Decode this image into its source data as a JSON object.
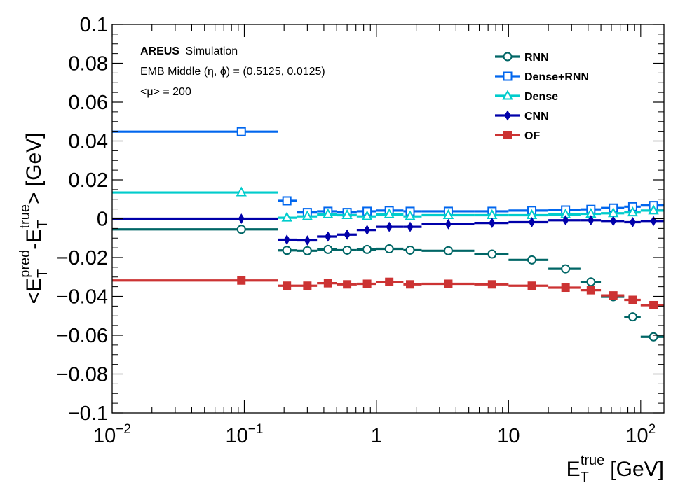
{
  "chart_data": {
    "type": "line",
    "x_scale": "log",
    "xlim": [
      0.01,
      150
    ],
    "ylim": [
      -0.1,
      0.1
    ],
    "xlabel": {
      "main": "E",
      "sub": "T",
      "sup": "true",
      "unit": "[GeV]"
    },
    "ylabel": {
      "pre": "<E",
      "sub1": "T",
      "sup1": "pred",
      "mid": "-E",
      "sub2": "T",
      "sup2": "true",
      "post": "> [GeV]"
    },
    "y_ticks": [
      {
        "value": 0.1,
        "label": "0.1"
      },
      {
        "value": 0.08,
        "label": "0.08"
      },
      {
        "value": 0.06,
        "label": "0.06"
      },
      {
        "value": 0.04,
        "label": "0.04"
      },
      {
        "value": 0.02,
        "label": "0.02"
      },
      {
        "value": 0,
        "label": "0"
      },
      {
        "value": -0.02,
        "label": "−0.02"
      },
      {
        "value": -0.04,
        "label": "−0.04"
      },
      {
        "value": -0.06,
        "label": "−0.06"
      },
      {
        "value": -0.08,
        "label": "−0.08"
      },
      {
        "value": -0.1,
        "label": "−0.1"
      }
    ],
    "x_ticks": [
      {
        "value": 0.01,
        "base": "10",
        "exp": "−2"
      },
      {
        "value": 0.1,
        "base": "10",
        "exp": "−1"
      },
      {
        "value": 1,
        "base": "1",
        "exp": ""
      },
      {
        "value": 10,
        "base": "10",
        "exp": ""
      },
      {
        "value": 100,
        "base": "10",
        "exp": "2"
      }
    ],
    "annotations": {
      "line1_bold": "AREUS",
      "line1_rest": "Simulation",
      "line2": "EMB Middle (η, ϕ) = (0.5125, 0.0125)",
      "line3": "<μ> = 200"
    },
    "legend_position": "top-right",
    "bins": [
      [
        0.01,
        0.18
      ],
      [
        0.18,
        0.25
      ],
      [
        0.25,
        0.355
      ],
      [
        0.355,
        0.5
      ],
      [
        0.5,
        0.71
      ],
      [
        0.71,
        1.0
      ],
      [
        1.0,
        1.6
      ],
      [
        1.6,
        2.2
      ],
      [
        2.2,
        5.5
      ],
      [
        5.5,
        10
      ],
      [
        10,
        20
      ],
      [
        20,
        35
      ],
      [
        35,
        50
      ],
      [
        50,
        75
      ],
      [
        75,
        100
      ],
      [
        100,
        150
      ]
    ],
    "centers": [
      0.095,
      0.21,
      0.3,
      0.43,
      0.6,
      0.85,
      1.25,
      1.8,
      3.5,
      7.5,
      15,
      27,
      42,
      62,
      87,
      125
    ],
    "series": [
      {
        "name": "RNN",
        "color": "#006666",
        "marker": "open-circle",
        "values": [
          -0.0055,
          -0.0163,
          -0.0165,
          -0.0158,
          -0.0162,
          -0.0158,
          -0.0155,
          -0.0162,
          -0.0165,
          -0.0182,
          -0.0212,
          -0.0258,
          -0.0325,
          -0.0402,
          -0.0505,
          -0.0608
        ]
      },
      {
        "name": "Dense+RNN",
        "color": "#0066ee",
        "marker": "open-square",
        "values": [
          0.0448,
          0.0092,
          0.0032,
          0.0038,
          0.0032,
          0.0038,
          0.0042,
          0.0038,
          0.0038,
          0.0038,
          0.0042,
          0.0045,
          0.0048,
          0.0055,
          0.0062,
          0.0068
        ]
      },
      {
        "name": "Dense",
        "color": "#00cccc",
        "marker": "open-triangle",
        "values": [
          0.0135,
          0.0005,
          0.0012,
          0.0022,
          0.0018,
          0.0012,
          0.0022,
          0.0012,
          0.0018,
          0.0018,
          0.0018,
          0.0022,
          0.0025,
          0.0028,
          0.0032,
          0.0042
        ]
      },
      {
        "name": "CNN",
        "color": "#0000aa",
        "marker": "diamond",
        "values": [
          0.0,
          -0.0108,
          -0.0112,
          -0.0092,
          -0.0082,
          -0.0058,
          -0.0042,
          -0.0042,
          -0.0028,
          -0.0022,
          -0.0018,
          -0.0008,
          -0.0008,
          -0.0012,
          -0.0018,
          -0.0012
        ]
      },
      {
        "name": "OF",
        "color": "#cc3333",
        "marker": "filled-square",
        "values": [
          -0.0318,
          -0.0345,
          -0.0345,
          -0.0332,
          -0.0338,
          -0.0335,
          -0.0325,
          -0.0338,
          -0.0335,
          -0.0338,
          -0.0345,
          -0.0355,
          -0.0368,
          -0.0395,
          -0.0418,
          -0.0445
        ]
      }
    ]
  }
}
